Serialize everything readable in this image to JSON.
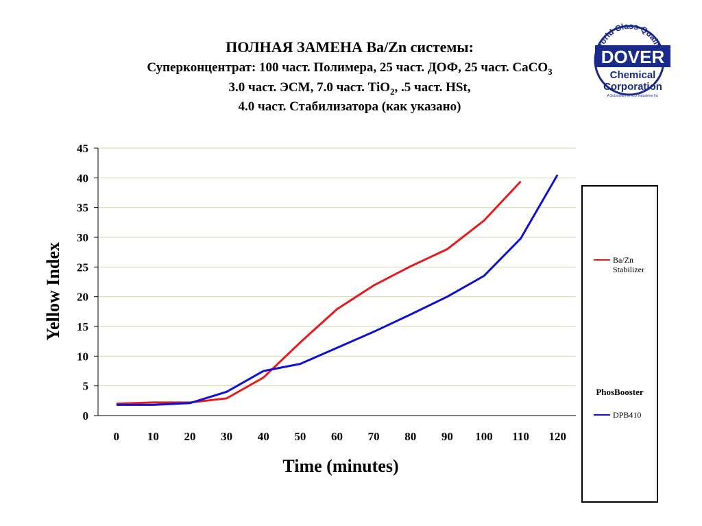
{
  "chart_data": {
    "type": "line",
    "title": "ПОЛНАЯ ЗАМЕНА  Ba/Zn системы:",
    "subtitle": [
      [
        "Суперконцентрат: 100 част. Полимера, 25 част. ДОФ, 25 част. CaCO",
        "3"
      ],
      [
        "3.0 част. ЭСМ, 7.0 част. TiO",
        "2",
        ",  .5 част. HSt,"
      ],
      [
        "4.0 част. Стабилизатора (как указано)"
      ]
    ],
    "x_label": "Time (minutes)",
    "y_label": "Yellow Index",
    "x": [
      0,
      10,
      20,
      30,
      40,
      50,
      60,
      70,
      80,
      90,
      100,
      110,
      120
    ],
    "xlim": [
      -5,
      125
    ],
    "xticks": [
      0,
      10,
      20,
      30,
      40,
      50,
      60,
      70,
      80,
      90,
      100,
      110,
      120
    ],
    "ylim": [
      0,
      45
    ],
    "yticks": [
      0,
      5,
      10,
      15,
      20,
      25,
      30,
      35,
      40,
      45
    ],
    "grid": true,
    "legend_heading": "PhosBooster",
    "series": [
      {
        "name": "Ba/Zn Stabilizer",
        "color": "#e41a1c",
        "values": [
          2.0,
          2.2,
          2.2,
          2.9,
          6.4,
          12.3,
          17.9,
          21.9,
          25.1,
          28.0,
          32.8,
          39.4,
          null
        ]
      },
      {
        "name": "DPB410",
        "color": "#1010d0",
        "values": [
          1.8,
          1.8,
          2.1,
          4.0,
          7.5,
          8.7,
          11.4,
          14.1,
          17.0,
          20.0,
          23.5,
          29.8,
          40.5
        ]
      }
    ]
  },
  "logo": {
    "ring": "World Class Quality",
    "name": "DOVER",
    "line1": "Chemical",
    "line2": "Corporation",
    "note": "A Subsidiary of ICO Industries Inc"
  }
}
